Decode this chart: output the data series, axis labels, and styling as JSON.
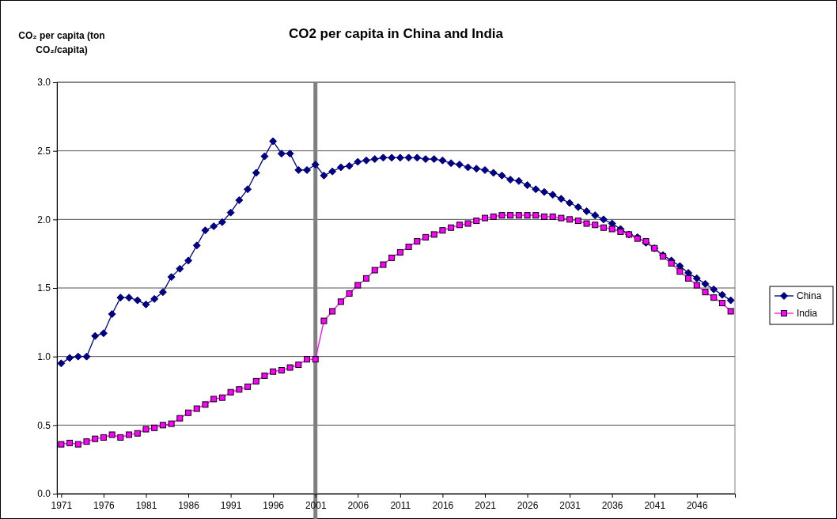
{
  "chart_data": {
    "type": "line",
    "title": "CO2 per capita in China and India",
    "ylabel": "CO₂ per capita (ton CO₂/capita)",
    "x": [
      1971,
      1972,
      1973,
      1974,
      1975,
      1976,
      1977,
      1978,
      1979,
      1980,
      1981,
      1982,
      1983,
      1984,
      1985,
      1986,
      1987,
      1988,
      1989,
      1990,
      1991,
      1992,
      1993,
      1994,
      1995,
      1996,
      1997,
      1998,
      1999,
      2000,
      2001,
      2002,
      2003,
      2004,
      2005,
      2006,
      2007,
      2008,
      2009,
      2010,
      2011,
      2012,
      2013,
      2014,
      2015,
      2016,
      2017,
      2018,
      2019,
      2020,
      2021,
      2022,
      2023,
      2024,
      2025,
      2026,
      2027,
      2028,
      2029,
      2030,
      2031,
      2032,
      2033,
      2034,
      2035,
      2036,
      2037,
      2038,
      2039,
      2040,
      2041,
      2042,
      2043,
      2044,
      2045,
      2046,
      2047,
      2048,
      2049,
      2050
    ],
    "series": [
      {
        "name": "China",
        "color": "#000080",
        "marker": "diamond",
        "values": [
          0.95,
          0.99,
          1.0,
          1.0,
          1.15,
          1.17,
          1.31,
          1.43,
          1.43,
          1.41,
          1.38,
          1.42,
          1.47,
          1.58,
          1.64,
          1.7,
          1.81,
          1.92,
          1.95,
          1.98,
          2.05,
          2.14,
          2.22,
          2.34,
          2.46,
          2.57,
          2.48,
          2.48,
          2.36,
          2.36,
          2.4,
          2.32,
          2.35,
          2.38,
          2.39,
          2.42,
          2.43,
          2.44,
          2.45,
          2.45,
          2.45,
          2.45,
          2.45,
          2.44,
          2.44,
          2.43,
          2.41,
          2.4,
          2.38,
          2.37,
          2.36,
          2.34,
          2.32,
          2.29,
          2.28,
          2.25,
          2.22,
          2.2,
          2.18,
          2.15,
          2.12,
          2.09,
          2.06,
          2.03,
          2.0,
          1.97,
          1.93,
          1.89,
          1.87,
          1.83,
          1.79,
          1.74,
          1.7,
          1.66,
          1.61,
          1.57,
          1.53,
          1.49,
          1.45,
          1.41
        ]
      },
      {
        "name": "India",
        "color": "#ff00ff",
        "marker": "square",
        "values": [
          0.36,
          0.37,
          0.36,
          0.38,
          0.4,
          0.41,
          0.43,
          0.41,
          0.43,
          0.44,
          0.47,
          0.48,
          0.5,
          0.51,
          0.55,
          0.59,
          0.62,
          0.65,
          0.69,
          0.7,
          0.74,
          0.76,
          0.78,
          0.82,
          0.86,
          0.89,
          0.9,
          0.92,
          0.94,
          0.98,
          0.98,
          1.26,
          1.33,
          1.4,
          1.46,
          1.52,
          1.57,
          1.63,
          1.67,
          1.72,
          1.76,
          1.8,
          1.84,
          1.87,
          1.89,
          1.92,
          1.94,
          1.96,
          1.97,
          1.99,
          2.01,
          2.02,
          2.03,
          2.03,
          2.03,
          2.03,
          2.03,
          2.02,
          2.02,
          2.01,
          2.0,
          1.99,
          1.97,
          1.96,
          1.94,
          1.93,
          1.91,
          1.89,
          1.86,
          1.84,
          1.79,
          1.73,
          1.68,
          1.62,
          1.57,
          1.52,
          1.47,
          1.43,
          1.39,
          1.33
        ]
      }
    ],
    "xlim": [
      1970.5,
      2050.5
    ],
    "xticks": [
      1971,
      1976,
      1981,
      1986,
      1991,
      1996,
      2001,
      2006,
      2011,
      2016,
      2021,
      2026,
      2031,
      2036,
      2041,
      2046
    ],
    "ylim": [
      0,
      3
    ],
    "yticks": [
      {
        "value": 0,
        "label": "0.0"
      },
      {
        "value": 0.5,
        "label": "0.5"
      },
      {
        "value": 1,
        "label": "1.0"
      },
      {
        "value": 1.5,
        "label": "1.5"
      },
      {
        "value": 2,
        "label": "2.0"
      },
      {
        "value": 2.5,
        "label": "2.5"
      },
      {
        "value": 3,
        "label": "3.0"
      }
    ],
    "grid": "y",
    "legend": "right",
    "line_style": "solid",
    "ref_lines": [
      {
        "axis": "x",
        "value": 2001,
        "color": "#808080"
      }
    ]
  }
}
